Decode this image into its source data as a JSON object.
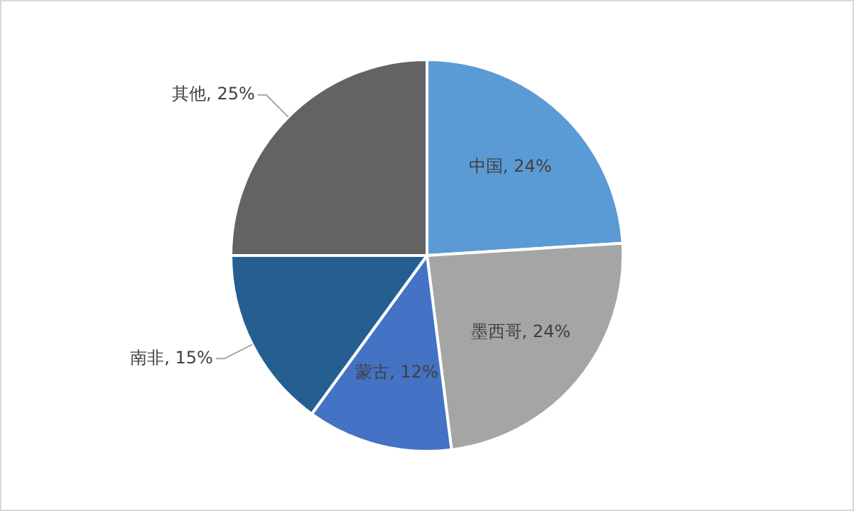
{
  "chart_data": {
    "type": "pie",
    "categories": [
      "中国",
      "墨西哥",
      "蒙古",
      "南非",
      "其他"
    ],
    "values": [
      24,
      24,
      12,
      15,
      25
    ],
    "colors": [
      "#5b9bd5",
      "#a5a5a5",
      "#4472c4",
      "#255e91",
      "#636363"
    ],
    "value_labels": [
      ", 24%",
      ", 24%",
      ", 12%",
      ", 15%",
      ", 25%"
    ],
    "legend": false
  }
}
